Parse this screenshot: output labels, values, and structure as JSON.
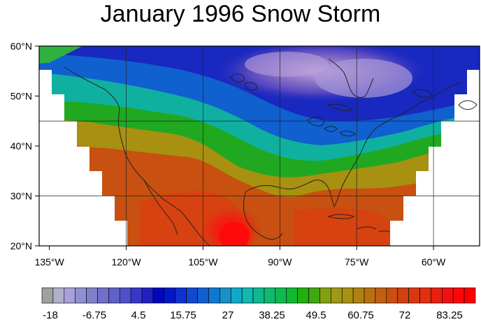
{
  "title": "January 1996 Snow Storm",
  "map": {
    "lon_range": [
      -137,
      -51
    ],
    "lat_range": [
      20,
      60
    ],
    "lon_ticks": [
      {
        "value": -135,
        "label": "135°W"
      },
      {
        "value": -120,
        "label": "120°W"
      },
      {
        "value": -105,
        "label": "105°W"
      },
      {
        "value": -90,
        "label": "90°W"
      },
      {
        "value": -75,
        "label": "75°W"
      },
      {
        "value": -60,
        "label": "60°W"
      }
    ],
    "lat_ticks": [
      {
        "value": 60,
        "label": "60°N"
      },
      {
        "value": 50,
        "label": "50°N"
      },
      {
        "value": 40,
        "label": "40°N"
      },
      {
        "value": 30,
        "label": "30°N"
      },
      {
        "value": 20,
        "label": "20°N"
      }
    ],
    "grid_lines": {
      "lon": [
        -120,
        -105,
        -90,
        -75,
        -60
      ],
      "lat": [
        45,
        30
      ]
    },
    "colors": {
      "cold": "#7070c8",
      "blue": "#2040d0",
      "green": "#20b020",
      "olive": "#a8a818",
      "orange": "#d06010",
      "red": "#e01818",
      "coast": "#222222"
    }
  },
  "colorbar": {
    "labels": [
      "-18",
      "-6.75",
      "4.5",
      "15.75",
      "27",
      "38.25",
      "49.5",
      "60.75",
      "72",
      "83.25"
    ],
    "colors": [
      "#a0a0a0",
      "#b0b0c8",
      "#a8a0d8",
      "#9090d0",
      "#8080c8",
      "#7070c8",
      "#6060c8",
      "#5050c8",
      "#3838c8",
      "#2020c0",
      "#0008b8",
      "#0018c8",
      "#1030d0",
      "#1048d0",
      "#1060d0",
      "#1078d0",
      "#1890c8",
      "#10a8c8",
      "#10b8b0",
      "#10b890",
      "#10b870",
      "#10b850",
      "#10b830",
      "#20b010",
      "#40a810",
      "#80a010",
      "#a09818",
      "#a89010",
      "#b08010",
      "#b87010",
      "#c06010",
      "#c85010",
      "#d04010",
      "#d83810",
      "#e03010",
      "#e82010",
      "#f01010",
      "#f80808",
      "#ff0000"
    ]
  }
}
